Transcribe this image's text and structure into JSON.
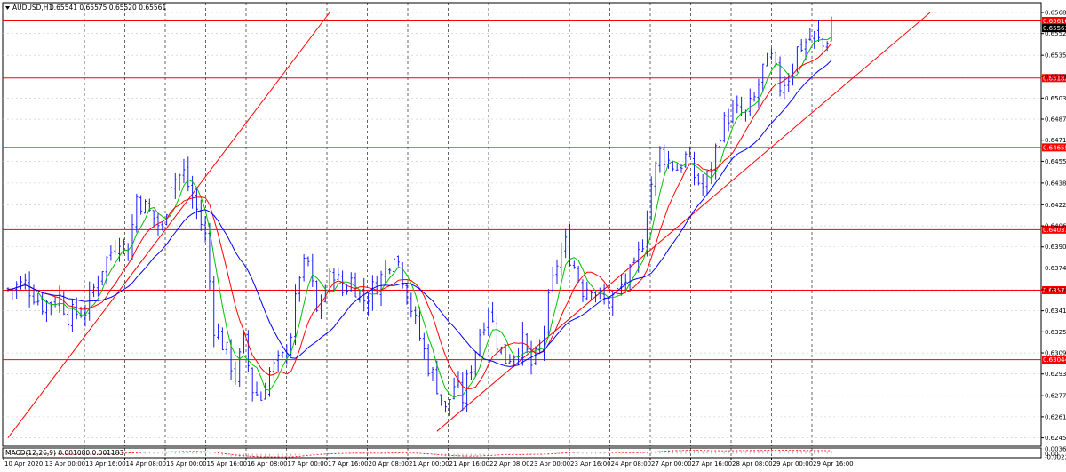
{
  "header": {
    "symbol": "AUDUSD,H1",
    "quote": "0.65541 0.65575 0.65520 0.65561",
    "collapse_icon": "triangle-down-icon"
  },
  "colors": {
    "background": "#ffffff",
    "grid": "#c8c8c8",
    "bull": "#1a1aff",
    "bear": "#1a1aff",
    "level_line": "#ff0000",
    "ma_fast": "#00c000",
    "ma_mid": "#ff0000",
    "ma_slow": "#0000ff",
    "macd_hist": "#bfbfbf",
    "macd_signal": "#ff0000",
    "price_box": "#000000"
  },
  "chart_data": [
    {
      "type": "candlestick",
      "title": "AUDUSD,H1",
      "ylim": [
        0.624,
        0.6568
      ],
      "y_ticks": [
        "0.65680",
        "0.65520",
        "0.65355",
        "0.65195",
        "0.65030",
        "0.64870",
        "0.64710",
        "0.64550",
        "0.64385",
        "0.64220",
        "0.64060",
        "0.63900",
        "0.63740",
        "0.63575",
        "0.63415",
        "0.63255",
        "0.63095",
        "0.62935",
        "0.62770",
        "0.62610",
        "0.62450"
      ],
      "x_ticks": [
        "10 Apr 2020",
        "13 Apr 00:00",
        "13 Apr 16:00",
        "14 Apr 08:00",
        "15 Apr 00:00",
        "15 Apr 16:00",
        "16 Apr 08:00",
        "17 Apr 00:00",
        "17 Apr 16:00",
        "20 Apr 08:00",
        "21 Apr 00:00",
        "21 Apr 16:00",
        "22 Apr 08:00",
        "23 Apr 00:00",
        "23 Apr 16:00",
        "24 Apr 08:00",
        "27 Apr 00:00",
        "27 Apr 16:00",
        "28 Apr 08:00",
        "29 Apr 00:00",
        "29 Apr 16:00"
      ],
      "price_anchors": [
        [
          0,
          0.6358
        ],
        [
          4,
          0.6362
        ],
        [
          8,
          0.6346
        ],
        [
          12,
          0.6352
        ],
        [
          14,
          0.6338
        ],
        [
          18,
          0.6342
        ],
        [
          22,
          0.6375
        ],
        [
          26,
          0.6398
        ],
        [
          28,
          0.6385
        ],
        [
          30,
          0.6428
        ],
        [
          34,
          0.6412
        ],
        [
          36,
          0.6402
        ],
        [
          38,
          0.644
        ],
        [
          41,
          0.6446
        ],
        [
          44,
          0.6418
        ],
        [
          46,
          0.6398
        ],
        [
          48,
          0.633
        ],
        [
          51,
          0.631
        ],
        [
          53,
          0.6292
        ],
        [
          55,
          0.6318
        ],
        [
          57,
          0.6282
        ],
        [
          59,
          0.6275
        ],
        [
          61,
          0.6295
        ],
        [
          64,
          0.6305
        ],
        [
          66,
          0.6325
        ],
        [
          68,
          0.637
        ],
        [
          70,
          0.6378
        ],
        [
          72,
          0.634
        ],
        [
          74,
          0.6358
        ],
        [
          76,
          0.6372
        ],
        [
          78,
          0.6356
        ],
        [
          80,
          0.6365
        ],
        [
          83,
          0.635
        ],
        [
          86,
          0.6362
        ],
        [
          88,
          0.6372
        ],
        [
          90,
          0.6388
        ],
        [
          92,
          0.6368
        ],
        [
          95,
          0.6332
        ],
        [
          98,
          0.63
        ],
        [
          100,
          0.6285
        ],
        [
          102,
          0.6265
        ],
        [
          104,
          0.6285
        ],
        [
          106,
          0.6275
        ],
        [
          108,
          0.63
        ],
        [
          110,
          0.6325
        ],
        [
          112,
          0.6345
        ],
        [
          114,
          0.6318
        ],
        [
          116,
          0.6305
        ],
        [
          118,
          0.631
        ],
        [
          120,
          0.6318
        ],
        [
          122,
          0.63
        ],
        [
          124,
          0.631
        ],
        [
          126,
          0.6348
        ],
        [
          128,
          0.6378
        ],
        [
          130,
          0.6392
        ],
        [
          132,
          0.6375
        ],
        [
          134,
          0.6358
        ],
        [
          136,
          0.6362
        ],
        [
          138,
          0.635
        ],
        [
          140,
          0.6348
        ],
        [
          142,
          0.6355
        ],
        [
          144,
          0.6365
        ],
        [
          146,
          0.6372
        ],
        [
          148,
          0.6395
        ],
        [
          150,
          0.6438
        ],
        [
          152,
          0.6462
        ],
        [
          154,
          0.6455
        ],
        [
          156,
          0.645
        ],
        [
          158,
          0.6458
        ],
        [
          160,
          0.6444
        ],
        [
          162,
          0.6435
        ],
        [
          164,
          0.645
        ],
        [
          166,
          0.6478
        ],
        [
          168,
          0.649
        ],
        [
          170,
          0.6492
        ],
        [
          172,
          0.649
        ],
        [
          174,
          0.6502
        ],
        [
          176,
          0.6525
        ],
        [
          178,
          0.6532
        ],
        [
          180,
          0.6512
        ],
        [
          182,
          0.652
        ],
        [
          184,
          0.654
        ],
        [
          186,
          0.6546
        ],
        [
          188,
          0.655
        ],
        [
          190,
          0.6542
        ],
        [
          192,
          0.6556
        ]
      ],
      "candle_count": 193,
      "horizontal_levels": [
        {
          "price": 0.65616,
          "label": "0.65616"
        },
        {
          "price": 0.65182,
          "label": "0.65182"
        },
        {
          "price": 0.64655,
          "label": "0.64655"
        },
        {
          "price": 0.64031,
          "label": "0.64031"
        },
        {
          "price": 0.63571,
          "label": "0.63571"
        },
        {
          "price": 0.63044,
          "label": "0.63044"
        }
      ],
      "current_price": {
        "price": 0.65561,
        "label": "0.65561"
      },
      "trend_lines": [
        {
          "from": [
            0,
            0.6245
          ],
          "to": [
            75,
            0.6568
          ]
        },
        {
          "from": [
            100,
            0.625
          ],
          "to": [
            215,
            0.6568
          ]
        }
      ],
      "moving_averages": [
        {
          "name": "ma_fast",
          "period": 5
        },
        {
          "name": "ma_mid",
          "period": 10
        },
        {
          "name": "ma_slow",
          "period": 20
        }
      ]
    },
    {
      "type": "bar",
      "title": "MACD(12,26,9) 0.001080 0.001183",
      "y_ticks": [
        "0.00361",
        "0.00",
        "-0.00229"
      ],
      "ylim": [
        -0.00229,
        0.00361
      ]
    }
  ]
}
